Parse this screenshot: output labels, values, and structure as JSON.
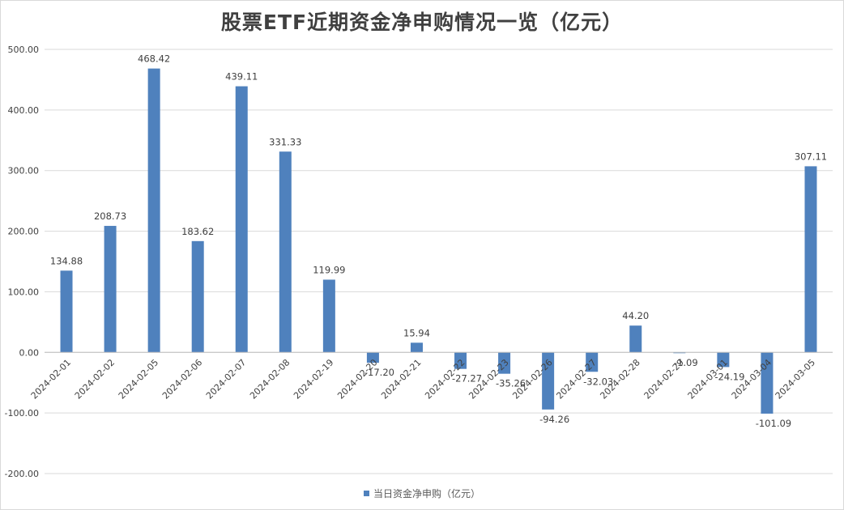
{
  "chart_data": {
    "type": "bar",
    "title": "股票ETF近期资金净申购情况一览（亿元）",
    "categories": [
      "2024-02-01",
      "2024-02-02",
      "2024-02-05",
      "2024-02-06",
      "2024-02-07",
      "2024-02-08",
      "2024-02-19",
      "2024-02-20",
      "2024-02-21",
      "2024-02-22",
      "2024-02-23",
      "2024-02-26",
      "2024-02-27",
      "2024-02-28",
      "2024-02-29",
      "2024-03-01",
      "2024-03-04",
      "2024-03-05"
    ],
    "series": [
      {
        "name": "当日资金净申购（亿元）",
        "values": [
          134.88,
          208.73,
          468.42,
          183.62,
          439.11,
          331.33,
          119.99,
          -17.2,
          15.94,
          -27.27,
          -35.26,
          -94.26,
          -32.03,
          44.2,
          -1.09,
          -24.19,
          -101.09,
          307.11
        ],
        "labels": [
          "134.88",
          "208.73",
          "468.42",
          "183.62",
          "439.11",
          "331.33",
          "119.99",
          "-17.20",
          "15.94",
          "-27.27",
          "-35.26",
          "-94.26",
          "-32.03",
          "44.20",
          "-1.09",
          "-24.19",
          "-101.09",
          "307.11"
        ]
      }
    ],
    "ylim": [
      -200,
      500
    ],
    "yticks": [
      "500.00",
      "400.00",
      "300.00",
      "200.00",
      "100.00",
      "0.00",
      "-100.00",
      "-200.00"
    ],
    "ytick_values": [
      500,
      400,
      300,
      200,
      100,
      0,
      -100,
      -200
    ],
    "grid": true,
    "legend_position": "bottom",
    "colors": {
      "bar": "#4f81bd",
      "grid": "#d9d9d9",
      "text": "#404040"
    }
  }
}
